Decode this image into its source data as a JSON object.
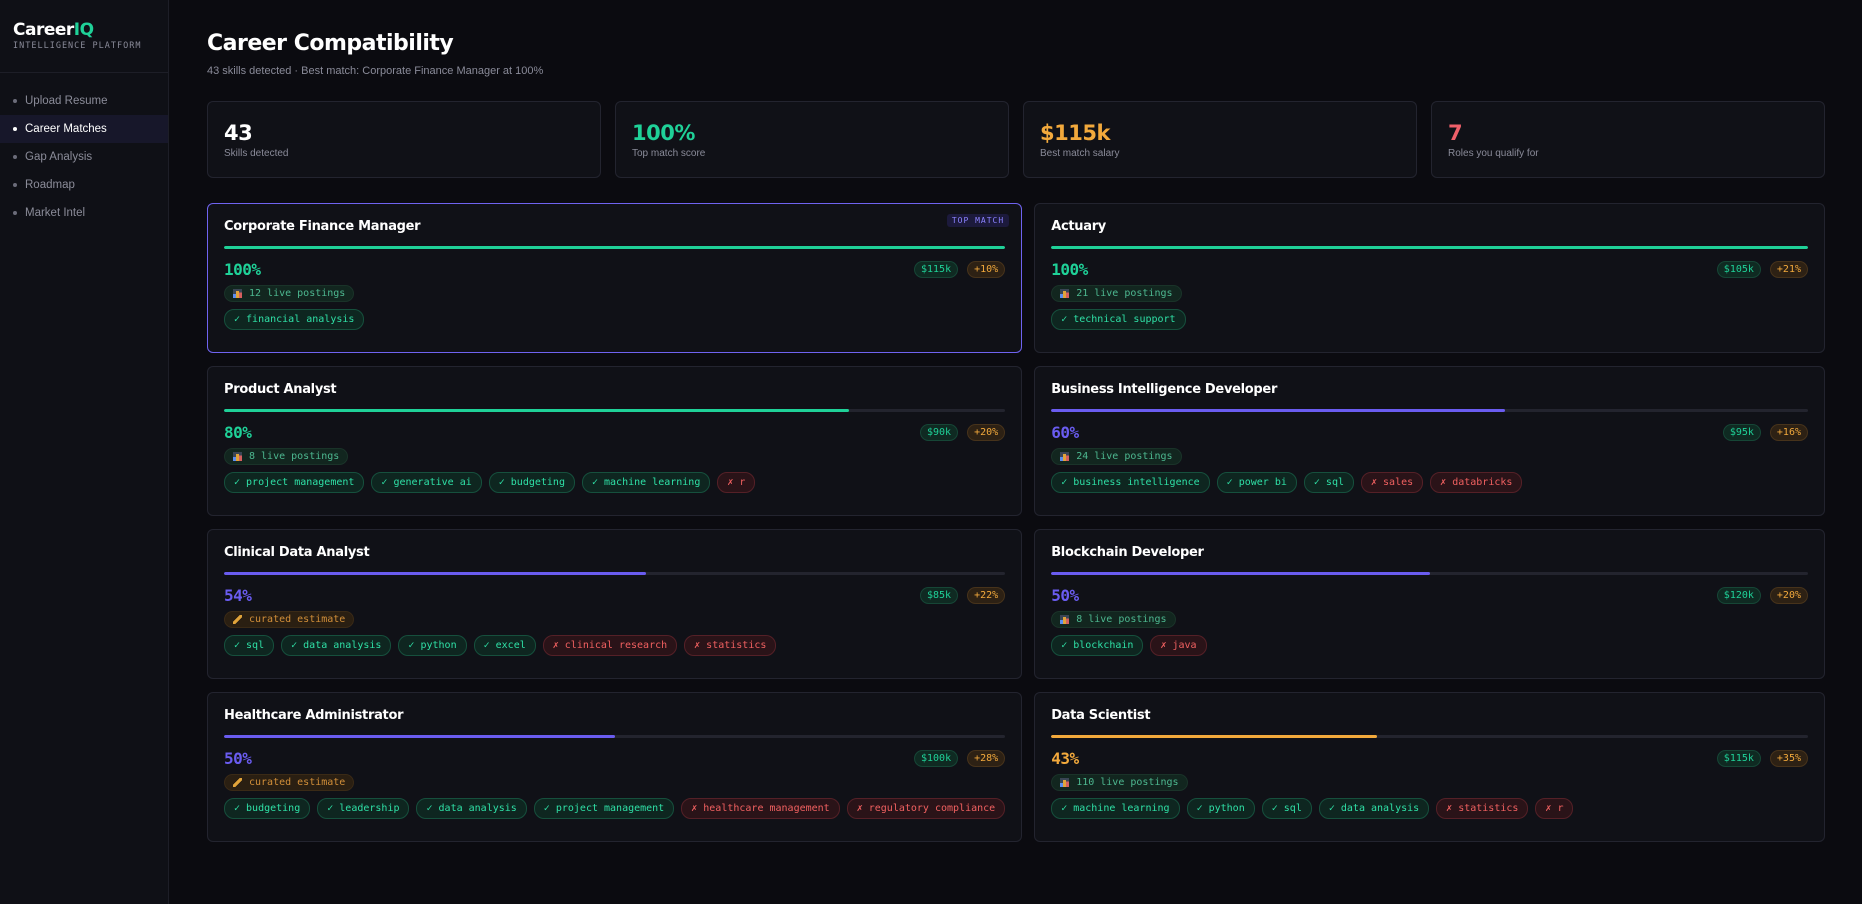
{
  "app": {
    "logo_main": "Career",
    "logo_accent": "IQ",
    "subtitle": "INTELLIGENCE PLATFORM"
  },
  "nav": [
    {
      "label": "Upload Resume",
      "active": false
    },
    {
      "label": "Career Matches",
      "active": true
    },
    {
      "label": "Gap Analysis",
      "active": false
    },
    {
      "label": "Roadmap",
      "active": false
    },
    {
      "label": "Market Intel",
      "active": false
    }
  ],
  "header": {
    "title": "Career Compatibility",
    "subtitle": "43 skills detected · Best match: Corporate Finance Manager at 100%"
  },
  "stats": [
    {
      "value": "43",
      "label": "Skills detected",
      "color": "#ffffff"
    },
    {
      "value": "100%",
      "label": "Top match score",
      "color": "#1fd198"
    },
    {
      "value": "$115k",
      "label": "Best match salary",
      "color": "#f2a93c"
    },
    {
      "value": "7",
      "label": "Roles you qualify for",
      "color": "#f0606a"
    }
  ],
  "top_badge": "TOP MATCH",
  "cards": [
    {
      "title": "Corporate Finance Manager",
      "score": "100%",
      "score_value": 100,
      "color": "#1fd198",
      "salary": "$115k",
      "growth": "+10%",
      "source_type": "live",
      "source": "12 live postings",
      "top": true,
      "skills": [
        {
          "label": "✓ financial analysis",
          "have": true
        }
      ]
    },
    {
      "title": "Actuary",
      "score": "100%",
      "score_value": 100,
      "color": "#1fd198",
      "salary": "$105k",
      "growth": "+21%",
      "source_type": "live",
      "source": "21 live postings",
      "top": false,
      "skills": [
        {
          "label": "✓ technical support",
          "have": true
        }
      ]
    },
    {
      "title": "Product Analyst",
      "score": "80%",
      "score_value": 80,
      "color": "#1fd198",
      "salary": "$90k",
      "growth": "+20%",
      "source_type": "live",
      "source": "8 live postings",
      "top": false,
      "skills": [
        {
          "label": "✓ project management",
          "have": true
        },
        {
          "label": "✓ generative ai",
          "have": true
        },
        {
          "label": "✓ budgeting",
          "have": true
        },
        {
          "label": "✓ machine learning",
          "have": true
        },
        {
          "label": "✗ r",
          "have": false
        }
      ]
    },
    {
      "title": "Business Intelligence Developer",
      "score": "60%",
      "score_value": 60,
      "color": "#6a5cf0",
      "salary": "$95k",
      "growth": "+16%",
      "source_type": "live",
      "source": "24 live postings",
      "top": false,
      "skills": [
        {
          "label": "✓ business intelligence",
          "have": true
        },
        {
          "label": "✓ power bi",
          "have": true
        },
        {
          "label": "✓ sql",
          "have": true
        },
        {
          "label": "✗ sales",
          "have": false
        },
        {
          "label": "✗ databricks",
          "have": false
        }
      ]
    },
    {
      "title": "Clinical Data Analyst",
      "score": "54%",
      "score_value": 54,
      "color": "#6a5cf0",
      "salary": "$85k",
      "growth": "+22%",
      "source_type": "curated",
      "source": "curated estimate",
      "top": false,
      "skills": [
        {
          "label": "✓ sql",
          "have": true
        },
        {
          "label": "✓ data analysis",
          "have": true
        },
        {
          "label": "✓ python",
          "have": true
        },
        {
          "label": "✓ excel",
          "have": true
        },
        {
          "label": "✗ clinical research",
          "have": false
        },
        {
          "label": "✗ statistics",
          "have": false
        }
      ]
    },
    {
      "title": "Blockchain Developer",
      "score": "50%",
      "score_value": 50,
      "color": "#6a5cf0",
      "salary": "$120k",
      "growth": "+20%",
      "source_type": "live",
      "source": "8 live postings",
      "top": false,
      "skills": [
        {
          "label": "✓ blockchain",
          "have": true
        },
        {
          "label": "✗ java",
          "have": false
        }
      ]
    },
    {
      "title": "Healthcare Administrator",
      "score": "50%",
      "score_value": 50,
      "color": "#6a5cf0",
      "salary": "$100k",
      "growth": "+28%",
      "source_type": "curated",
      "source": "curated estimate",
      "top": false,
      "skills": [
        {
          "label": "✓ budgeting",
          "have": true
        },
        {
          "label": "✓ leadership",
          "have": true
        },
        {
          "label": "✓ data analysis",
          "have": true
        },
        {
          "label": "✓ project management",
          "have": true
        },
        {
          "label": "✗ healthcare management",
          "have": false
        },
        {
          "label": "✗ regulatory compliance",
          "have": false
        }
      ]
    },
    {
      "title": "Data Scientist",
      "score": "43%",
      "score_value": 43,
      "color": "#f2a93c",
      "salary": "$115k",
      "growth": "+35%",
      "source_type": "live",
      "source": "110 live postings",
      "top": false,
      "skills": [
        {
          "label": "✓ machine learning",
          "have": true
        },
        {
          "label": "✓ python",
          "have": true
        },
        {
          "label": "✓ sql",
          "have": true
        },
        {
          "label": "✓ data analysis",
          "have": true
        },
        {
          "label": "✗ statistics",
          "have": false
        },
        {
          "label": "✗ r",
          "have": false
        }
      ]
    }
  ]
}
